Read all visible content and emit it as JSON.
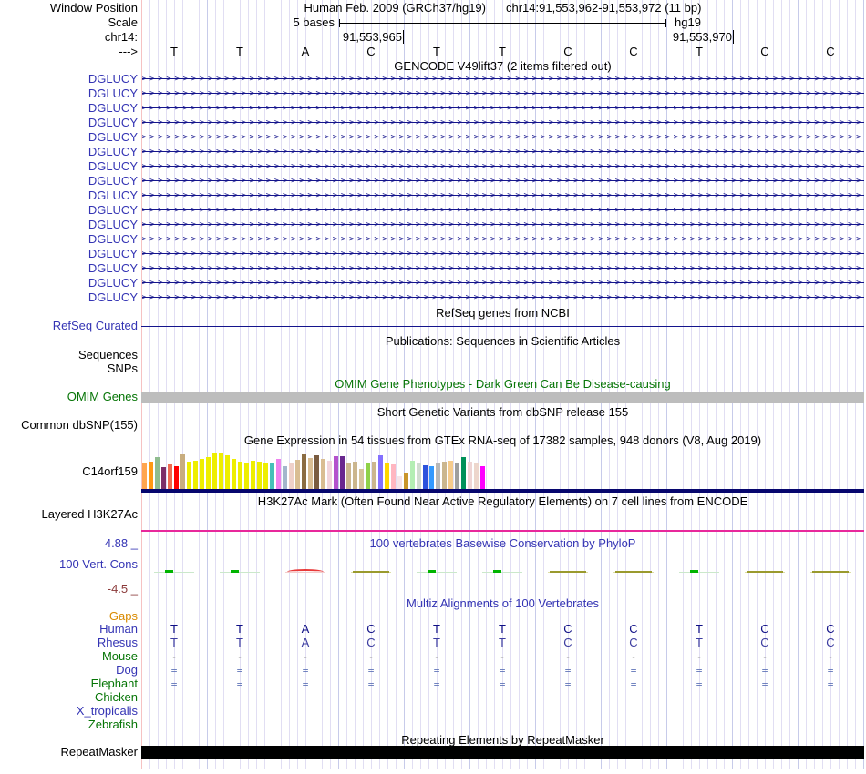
{
  "header": {
    "window_position_label": "Window Position",
    "assembly_title": "Human Feb. 2009 (GRCh37/hg19)",
    "position_title": "chr14:91,553,962-91,553,972 (11 bp)",
    "scale_label": "Scale",
    "scale_text": "5 bases",
    "genome_label": "hg19",
    "chrom_label": "chr14:",
    "ruler_left": "91,553,965",
    "ruler_right": "91,553,970",
    "strand_arrow": "--->",
    "bases": [
      "T",
      "T",
      "A",
      "C",
      "T",
      "T",
      "C",
      "C",
      "T",
      "C",
      "C"
    ]
  },
  "gencode": {
    "title": "GENCODE V49lift37 (2 items filtered out)",
    "gene_name": "DGLUCY",
    "transcript_count": 16
  },
  "refseq": {
    "title": "RefSeq genes from NCBI",
    "label": "RefSeq Curated"
  },
  "publications": {
    "title": "Publications: Sequences in Scientific Articles",
    "label_sequences": "Sequences",
    "label_snps": "SNPs"
  },
  "omim": {
    "title": "OMIM Gene Phenotypes - Dark Green Can Be Disease-causing",
    "label": "OMIM Genes"
  },
  "dbsnp": {
    "title": "Short Genetic Variants from dbSNP release 155",
    "label": "Common dbSNP(155)"
  },
  "gtex": {
    "title": "Gene Expression in 54 tissues from GTEx RNA-seq of 17382 samples, 948 donors (V8, Aug 2019)",
    "gene_label": "C14orf159"
  },
  "h3k27ac": {
    "title": "H3K27Ac Mark (Often Found Near Active Regulatory Elements) on 7 cell lines from ENCODE",
    "label": "Layered H3K27Ac"
  },
  "conservation": {
    "title": "100 vertebrates Basewise Conservation by PhyloP",
    "label": "100 Vert. Cons",
    "scale_max": "4.88 _",
    "scale_min": "-4.5 _",
    "marks": [
      "green",
      "green",
      "red",
      "olive",
      "green",
      "green",
      "olive",
      "olive",
      "green",
      "olive",
      "olive"
    ]
  },
  "multiz": {
    "title": "Multiz Alignments of 100 Vertebrates",
    "rows": [
      {
        "label": "Gaps",
        "label_color": "orange",
        "cells": "empty"
      },
      {
        "label": "Human",
        "label_color": "blue",
        "cells": "bases"
      },
      {
        "label": "Rhesus",
        "label_color": "blue",
        "cells": "bases2"
      },
      {
        "label": "Mouse",
        "label_color": "green",
        "cells": "dashes"
      },
      {
        "label": "Dog",
        "label_color": "blue",
        "cells": "equals"
      },
      {
        "label": "Elephant",
        "label_color": "green",
        "cells": "equals"
      },
      {
        "label": "Chicken",
        "label_color": "green",
        "cells": "empty"
      },
      {
        "label": "X_tropicalis",
        "label_color": "blue",
        "cells": "empty"
      },
      {
        "label": "Zebrafish",
        "label_color": "green",
        "cells": "empty"
      }
    ]
  },
  "repeatmasker": {
    "title": "Repeating Elements by RepeatMasker",
    "label": "RepeatMasker"
  },
  "chart_data": {
    "type": "bar",
    "title": "Gene Expression in 54 tissues from GTEx RNA-seq of 17382 samples, 948 donors (V8, Aug 2019)",
    "gene": "C14orf159",
    "note": "54 GTEx tissue expression bars, heights are relative pixel units (no value axis shown in image)",
    "values": [
      28,
      30,
      35,
      24,
      27,
      25,
      38,
      30,
      31,
      33,
      35,
      40,
      39,
      37,
      33,
      30,
      29,
      31,
      30,
      28,
      28,
      33,
      25,
      29,
      32,
      38,
      34,
      37,
      33,
      31,
      36,
      36,
      29,
      30,
      22,
      29,
      30,
      37,
      28,
      27,
      14,
      18,
      31,
      29,
      26,
      25,
      28,
      30,
      31,
      29,
      35,
      30,
      28,
      25
    ],
    "colors": [
      "#FFA54F",
      "#FF9912",
      "#8FBC8F",
      "#7D2E68",
      "#EE6A50",
      "#FF0000",
      "#C8AD7F",
      "#EEEE00",
      "#EEEE00",
      "#EEEE00",
      "#EEEE00",
      "#EEEE00",
      "#EEEE00",
      "#EEEE00",
      "#EEEE00",
      "#EEEE00",
      "#EEEE00",
      "#EEEE00",
      "#EEEE00",
      "#EEEE00",
      "#45C0B8",
      "#EE82EE",
      "#A3B6CC",
      "#EFD0C8",
      "#D9BD92",
      "#8B6C42",
      "#D9BD92",
      "#7A5C40",
      "#D9BD92",
      "#F2D5DC",
      "#B452CD",
      "#69278F",
      "#CBB68E",
      "#CBB68E",
      "#D6C49A",
      "#8FD148",
      "#CBB68E",
      "#8470FF",
      "#FFD700",
      "#FFB6C1",
      "#F6E3E8",
      "#C9952B",
      "#B4EEB4",
      "#D1DCD1",
      "#2C52DD",
      "#3399FF",
      "#B8B8B8",
      "#CBB68E",
      "#F5CB8C",
      "#9E9E9E",
      "#00915A",
      "#EFD5D5",
      "#EDD6CC",
      "#FF00FF"
    ]
  },
  "colors": {
    "label_blue": "#3434B4",
    "label_green": "#067506",
    "label_orange": "#D98A00",
    "label_darkred": "#8B3A3A",
    "gene_navy": "#14148C",
    "gtex_baseline_navy": "#06066E",
    "h3k27ac_magenta": "#E8289B",
    "omim_bar_gray": "#BDBDBD",
    "grid_line": "#E1DEF3",
    "grid_base_boundary": "#C7CBEA",
    "guide_pink": "#F6C2C2",
    "repeat_black": "#000000",
    "phylop_green": "#00B400",
    "phylop_red": "#E83A3A",
    "phylop_olive": "#9A9A2E"
  }
}
